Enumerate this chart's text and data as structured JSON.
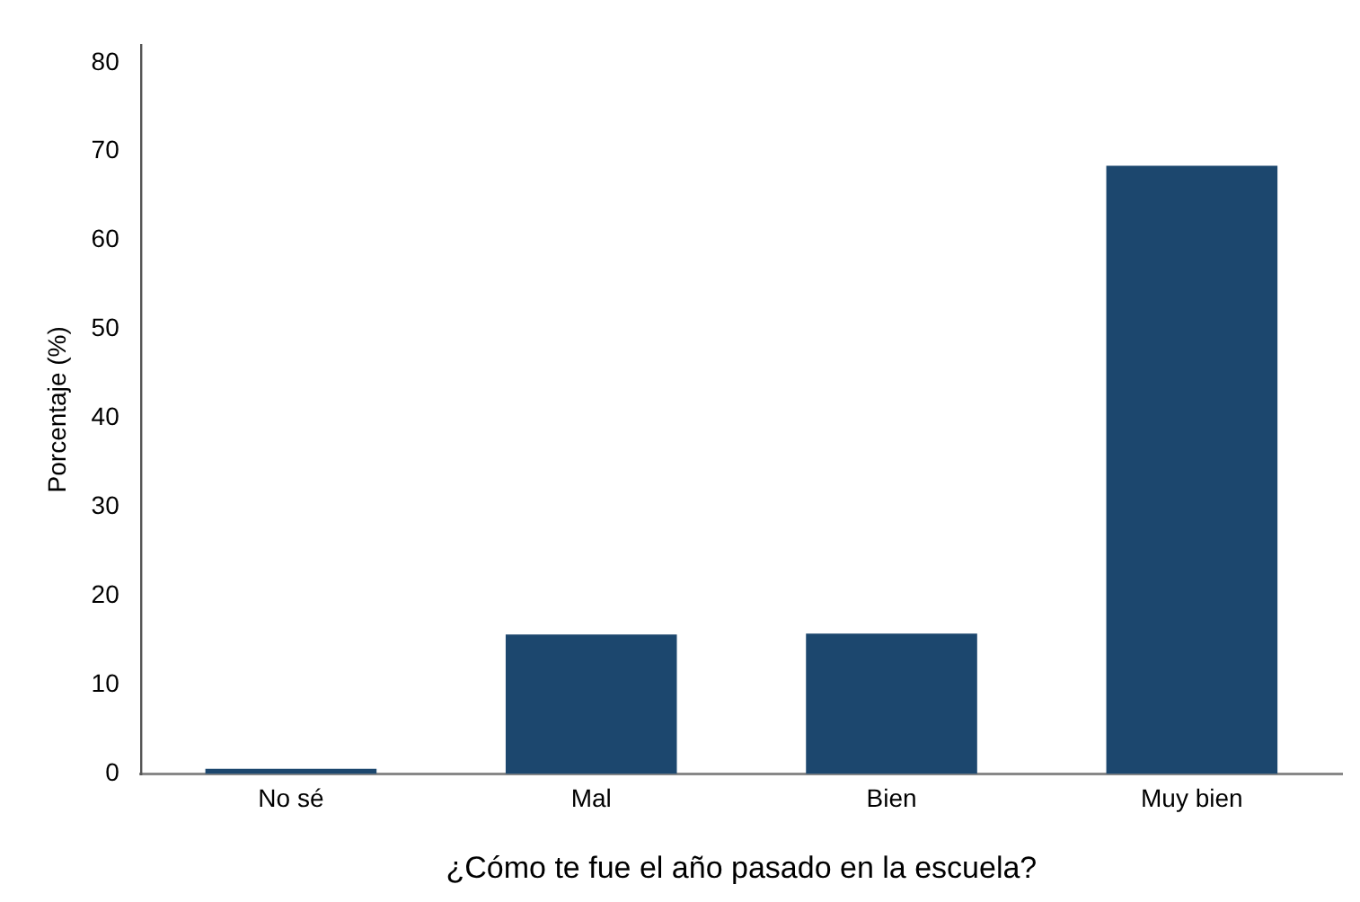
{
  "chart_data": {
    "type": "bar",
    "xlabel": "¿Cómo te fue el año pasado en la escuela?",
    "ylabel": "Porcentaje (%)",
    "categories": [
      "No sé",
      "Mal",
      "Bien",
      "Muy bien"
    ],
    "values": [
      0.6,
      15.7,
      15.8,
      68.4
    ],
    "color": "#1c476e",
    "ylim": [
      0,
      82
    ],
    "yticks": [
      0,
      10,
      20,
      30,
      40,
      50,
      60,
      70,
      80
    ],
    "grid": false,
    "legend": false
  }
}
